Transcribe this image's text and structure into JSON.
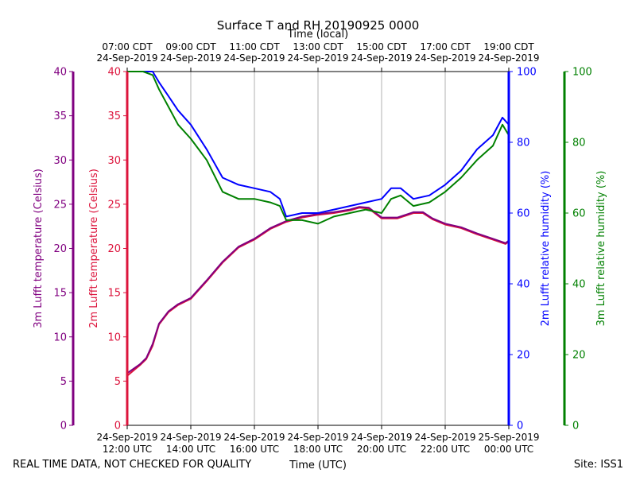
{
  "chart_data": {
    "type": "line",
    "title": "Surface T and RH 20190925 0000",
    "top_axis_title": "Time (local)",
    "xlabel": "Time (UTC)",
    "footer_left": "REAL TIME DATA, NOT CHECKED FOR QUALITY",
    "footer_right": "Site: ISS1",
    "x_range_hours_utc": [
      12,
      24
    ],
    "bottom_ticks": [
      {
        "h": 12,
        "l1": "24-Sep-2019",
        "l2": "12:00 UTC"
      },
      {
        "h": 14,
        "l1": "24-Sep-2019",
        "l2": "14:00 UTC"
      },
      {
        "h": 16,
        "l1": "24-Sep-2019",
        "l2": "16:00 UTC"
      },
      {
        "h": 18,
        "l1": "24-Sep-2019",
        "l2": "18:00 UTC"
      },
      {
        "h": 20,
        "l1": "24-Sep-2019",
        "l2": "20:00 UTC"
      },
      {
        "h": 22,
        "l1": "24-Sep-2019",
        "l2": "22:00 UTC"
      },
      {
        "h": 24,
        "l1": "25-Sep-2019",
        "l2": "00:00 UTC"
      }
    ],
    "top_ticks": [
      {
        "h": 12,
        "l1": "07:00 CDT",
        "l2": "24-Sep-2019"
      },
      {
        "h": 14,
        "l1": "09:00 CDT",
        "l2": "24-Sep-2019"
      },
      {
        "h": 16,
        "l1": "11:00 CDT",
        "l2": "24-Sep-2019"
      },
      {
        "h": 18,
        "l1": "13:00 CDT",
        "l2": "24-Sep-2019"
      },
      {
        "h": 20,
        "l1": "15:00 CDT",
        "l2": "24-Sep-2019"
      },
      {
        "h": 22,
        "l1": "17:00 CDT",
        "l2": "24-Sep-2019"
      },
      {
        "h": 24,
        "l1": "19:00 CDT",
        "l2": "24-Sep-2019"
      }
    ],
    "axes": {
      "t3m": {
        "label": "3m Lufft temperature (Celsius)",
        "ylim": [
          0,
          40
        ],
        "ticks": [
          "0",
          "5",
          "10",
          "15",
          "20",
          "25",
          "30",
          "35",
          "40"
        ],
        "color": "#800080"
      },
      "t2m": {
        "label": "2m Lufft temperature (Celsius)",
        "ylim": [
          0,
          40
        ],
        "ticks": [
          "0",
          "5",
          "10",
          "15",
          "20",
          "25",
          "30",
          "35",
          "40"
        ],
        "color": "#dc143c"
      },
      "rh2m": {
        "label": "2m Lufft relative humidity (%)",
        "ylim": [
          0,
          100
        ],
        "ticks": [
          "0",
          "20",
          "40",
          "60",
          "80",
          "100"
        ],
        "color": "#0000ff"
      },
      "rh3m": {
        "label": "3m Lufft relative humidity (%)",
        "ylim": [
          0,
          100
        ],
        "ticks": [
          "0",
          "20",
          "40",
          "60",
          "80",
          "100"
        ],
        "color": "#008000"
      }
    },
    "series": [
      {
        "name": "2m Lufft temperature",
        "axis": "t2m",
        "color": "#dc143c",
        "x": [
          12.0,
          12.2,
          12.4,
          12.6,
          12.8,
          13.0,
          13.3,
          13.6,
          14.0,
          14.5,
          15.0,
          15.5,
          16.0,
          16.5,
          17.0,
          17.5,
          18.0,
          18.5,
          19.0,
          19.3,
          19.6,
          20.0,
          20.5,
          21.0,
          21.3,
          21.6,
          22.0,
          22.5,
          23.0,
          23.5,
          23.9,
          24.0
        ],
        "values": [
          5.6,
          6.2,
          6.8,
          7.5,
          9.0,
          11.4,
          12.8,
          13.6,
          14.3,
          16.3,
          18.4,
          20.1,
          21.0,
          22.2,
          23.0,
          23.5,
          23.8,
          24.0,
          24.3,
          24.6,
          24.5,
          23.4,
          23.4,
          24.0,
          24.0,
          23.3,
          22.7,
          22.3,
          21.6,
          21.0,
          20.5,
          20.8
        ]
      },
      {
        "name": "3m Lufft temperature",
        "axis": "t3m",
        "color": "#800080",
        "x": [
          12.0,
          12.2,
          12.4,
          12.6,
          12.8,
          13.0,
          13.3,
          13.6,
          14.0,
          14.5,
          15.0,
          15.5,
          16.0,
          16.5,
          17.0,
          17.5,
          18.0,
          18.5,
          19.0,
          19.3,
          19.6,
          20.0,
          20.5,
          21.0,
          21.3,
          21.6,
          22.0,
          22.5,
          23.0,
          23.5,
          23.9,
          24.0
        ],
        "values": [
          5.9,
          6.4,
          6.9,
          7.6,
          9.2,
          11.5,
          12.9,
          13.7,
          14.4,
          16.4,
          18.5,
          20.2,
          21.1,
          22.3,
          23.1,
          23.6,
          23.9,
          24.1,
          24.4,
          24.7,
          24.6,
          23.5,
          23.5,
          24.1,
          24.1,
          23.4,
          22.8,
          22.4,
          21.7,
          21.1,
          20.6,
          20.9
        ]
      },
      {
        "name": "2m Lufft relative humidity",
        "axis": "rh2m",
        "color": "#0000ff",
        "x": [
          12.0,
          12.5,
          12.8,
          13.0,
          13.3,
          13.6,
          14.0,
          14.5,
          15.0,
          15.5,
          16.0,
          16.5,
          16.8,
          17.0,
          17.5,
          18.0,
          18.5,
          19.0,
          19.5,
          20.0,
          20.3,
          20.6,
          21.0,
          21.5,
          22.0,
          22.5,
          23.0,
          23.5,
          23.8,
          24.0
        ],
        "values": [
          100,
          100,
          100,
          97,
          93,
          89,
          85,
          78,
          70,
          68,
          67,
          66,
          64,
          59,
          60,
          60,
          61,
          62,
          63,
          64,
          67,
          67,
          64,
          65,
          68,
          72,
          78,
          82,
          87,
          85
        ]
      },
      {
        "name": "3m Lufft relative humidity",
        "axis": "rh3m",
        "color": "#008000",
        "x": [
          12.0,
          12.5,
          12.8,
          13.0,
          13.3,
          13.6,
          14.0,
          14.5,
          15.0,
          15.5,
          16.0,
          16.5,
          16.8,
          17.0,
          17.5,
          18.0,
          18.5,
          19.0,
          19.5,
          20.0,
          20.3,
          20.6,
          21.0,
          21.5,
          22.0,
          22.5,
          23.0,
          23.5,
          23.8,
          24.0
        ],
        "values": [
          100,
          100,
          99,
          95,
          90,
          85,
          81,
          75,
          66,
          64,
          64,
          63,
          62,
          58,
          58,
          57,
          59,
          60,
          61,
          60,
          64,
          65,
          62,
          63,
          66,
          70,
          75,
          79,
          85,
          82
        ]
      }
    ]
  }
}
